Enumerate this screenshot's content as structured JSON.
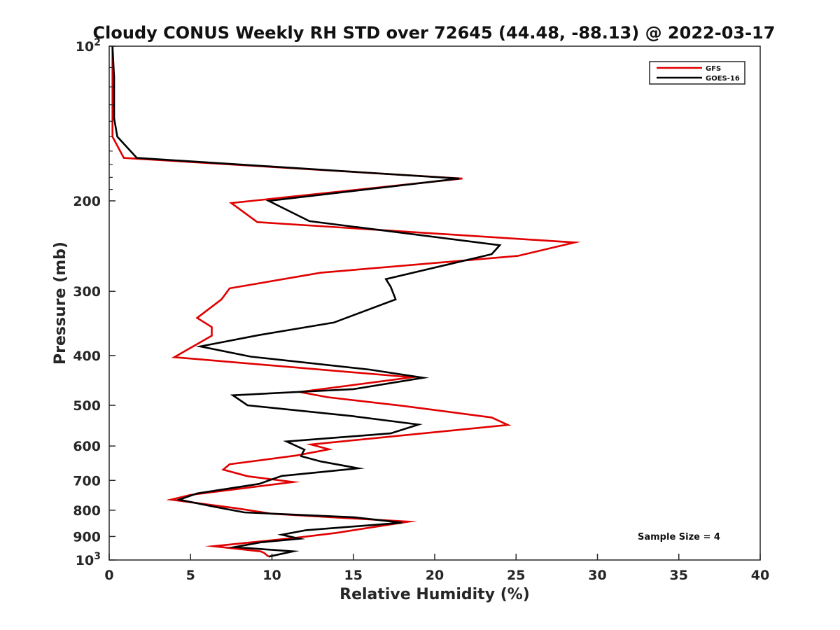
{
  "chart_data": {
    "type": "line",
    "title": "Cloudy CONUS Weekly RH STD over 72645 (44.48, -88.13) @ 2022-03-17",
    "xlabel": "Relative Humidity (%)",
    "ylabel": "Pressure (mb)",
    "xlim": [
      0,
      40
    ],
    "ylim": [
      100,
      1000
    ],
    "y_scale": "log",
    "y_reversed": true,
    "x_ticks": [
      "0",
      "5",
      "10",
      "15",
      "20",
      "25",
      "30",
      "35",
      "40"
    ],
    "y_ticks": [
      {
        "value": 100,
        "base": "10",
        "exp": "2"
      },
      {
        "value": 200,
        "label": "200"
      },
      {
        "value": 300,
        "label": "300"
      },
      {
        "value": 400,
        "label": "400"
      },
      {
        "value": 500,
        "label": "500"
      },
      {
        "value": 600,
        "label": "600"
      },
      {
        "value": 700,
        "label": "700"
      },
      {
        "value": 800,
        "label": "800"
      },
      {
        "value": 900,
        "label": "900"
      },
      {
        "value": 1000,
        "base": "10",
        "exp": "3"
      }
    ],
    "grid": false,
    "legend_position": "top-right",
    "annotation": "Sample Size = 4",
    "series": [
      {
        "name": "GFS",
        "color": "#e00000",
        "points": [
          [
            0.2,
            100
          ],
          [
            0.2,
            115
          ],
          [
            0.2,
            125
          ],
          [
            0.2,
            138
          ],
          [
            0.2,
            150
          ],
          [
            0.9,
            165
          ],
          [
            21.7,
            181
          ],
          [
            7.5,
            202
          ],
          [
            9.1,
            220
          ],
          [
            28.6,
            241
          ],
          [
            25.1,
            256
          ],
          [
            13.0,
            276
          ],
          [
            7.4,
            296
          ],
          [
            6.9,
            311
          ],
          [
            5.4,
            338
          ],
          [
            6.3,
            352
          ],
          [
            6.3,
            366
          ],
          [
            4.0,
            403
          ],
          [
            18.6,
            441
          ],
          [
            11.7,
            471
          ],
          [
            13.4,
            482
          ],
          [
            18.0,
            501
          ],
          [
            23.5,
            528
          ],
          [
            24.5,
            546
          ],
          [
            12.4,
            596
          ],
          [
            13.5,
            609
          ],
          [
            11.5,
            626
          ],
          [
            7.4,
            651
          ],
          [
            7.0,
            667
          ],
          [
            8.5,
            687
          ],
          [
            11.3,
            705
          ],
          [
            5.0,
            747
          ],
          [
            3.8,
            763
          ],
          [
            7.8,
            793
          ],
          [
            10.0,
            813
          ],
          [
            18.4,
            842
          ],
          [
            13.9,
            886
          ],
          [
            11.5,
            905
          ],
          [
            6.4,
            940
          ],
          [
            9.3,
            962
          ],
          [
            9.5,
            968
          ],
          [
            9.8,
            985
          ]
        ]
      },
      {
        "name": "GOES-16",
        "color": "#000000",
        "points": [
          [
            0.2,
            100
          ],
          [
            0.3,
            115
          ],
          [
            0.3,
            125
          ],
          [
            0.3,
            138
          ],
          [
            0.5,
            150
          ],
          [
            1.7,
            165
          ],
          [
            21.5,
            181
          ],
          [
            9.8,
            200
          ],
          [
            12.3,
            219
          ],
          [
            24.0,
            244
          ],
          [
            23.5,
            254
          ],
          [
            17.0,
            284
          ],
          [
            17.3,
            294
          ],
          [
            17.6,
            311
          ],
          [
            13.8,
            345
          ],
          [
            9.2,
            365
          ],
          [
            5.6,
            384
          ],
          [
            8.7,
            402
          ],
          [
            16.0,
            426
          ],
          [
            19.3,
            442
          ],
          [
            15.0,
            465
          ],
          [
            7.6,
            478
          ],
          [
            8.5,
            500
          ],
          [
            15.0,
            525
          ],
          [
            19.0,
            545
          ],
          [
            17.3,
            567
          ],
          [
            10.9,
            588
          ],
          [
            12.0,
            610
          ],
          [
            11.9,
            617
          ],
          [
            11.8,
            628
          ],
          [
            13.0,
            643
          ],
          [
            15.3,
            663
          ],
          [
            10.6,
            686
          ],
          [
            9.2,
            711
          ],
          [
            5.4,
            742
          ],
          [
            4.3,
            763
          ],
          [
            6.5,
            788
          ],
          [
            8.3,
            808
          ],
          [
            15.1,
            826
          ],
          [
            18.0,
            846
          ],
          [
            12.1,
            875
          ],
          [
            10.6,
            893
          ],
          [
            11.7,
            909
          ],
          [
            9.3,
            924
          ],
          [
            7.7,
            944
          ],
          [
            11.3,
            962
          ],
          [
            9.8,
            985
          ]
        ]
      }
    ]
  }
}
